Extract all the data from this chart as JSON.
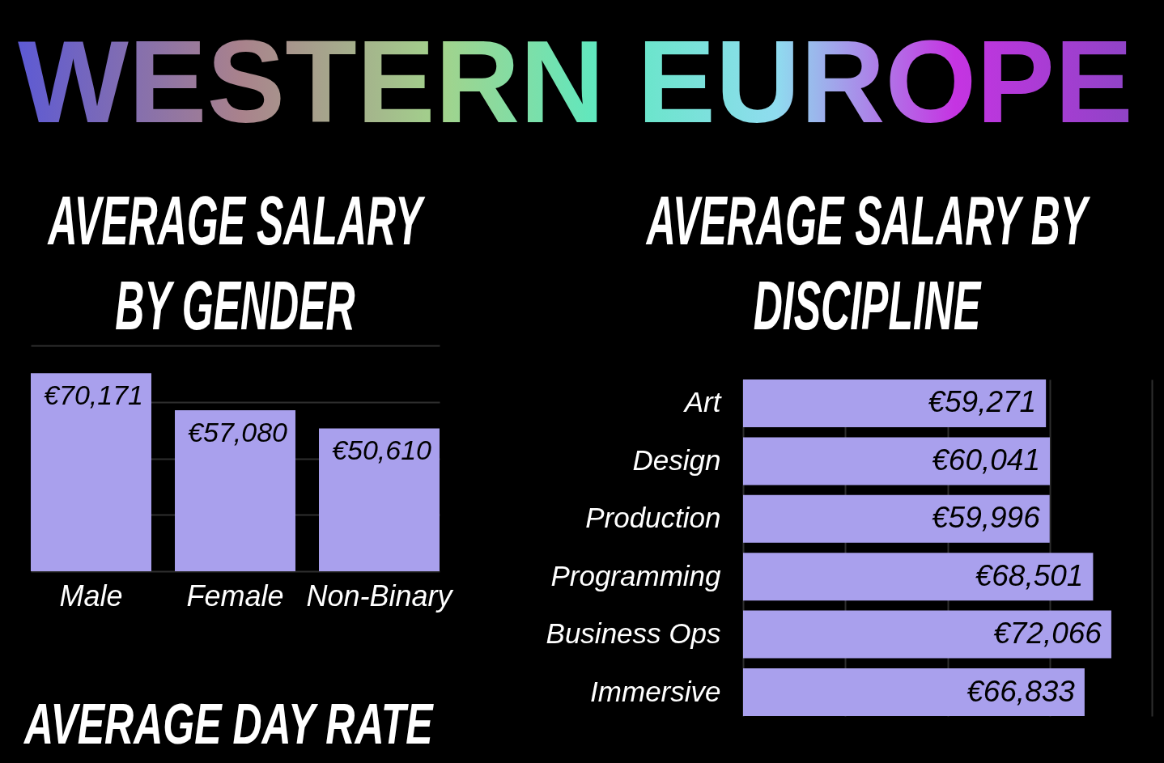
{
  "chart_data": [
    {
      "type": "other",
      "title": "WESTERN EUROPE"
    },
    {
      "type": "bar",
      "title": "AVERAGE SALARY BY GENDER",
      "categories": [
        "Male",
        "Female",
        "Non-Binary"
      ],
      "values": [
        70171,
        57080,
        50610
      ],
      "value_labels": [
        "€70,171",
        "€57,080",
        "€50,610"
      ],
      "color": "#a9a0ed",
      "ylim": [
        0,
        80000
      ],
      "yticks": [
        {
          "value": 0,
          "label": null
        },
        {
          "value": 20000,
          "label": null
        },
        {
          "value": 40000,
          "label": null
        },
        {
          "value": 60000,
          "label": null
        },
        {
          "value": 80000,
          "label": null
        }
      ],
      "grid": "y",
      "tick_labels": "x"
    },
    {
      "type": "bar",
      "orientation": "horizontal",
      "title": "AVERAGE SALARY BY DISCIPLINE",
      "categories": [
        "Art",
        "Design",
        "Production",
        "Programming",
        "Business Ops",
        "Immersive"
      ],
      "values": [
        59271,
        60041,
        59996,
        68501,
        72066,
        66833
      ],
      "value_labels": [
        "€59,271",
        "€60,041",
        "€59,996",
        "€68,501",
        "€72,066",
        "€66,833"
      ],
      "color": "#a9a0ed",
      "xlim": [
        0,
        80000
      ],
      "xticks": [
        {
          "value": 0,
          "label": null
        },
        {
          "value": 20000,
          "label": null
        },
        {
          "value": 40000,
          "label": null
        },
        {
          "value": 60000,
          "label": null
        },
        {
          "value": 80000,
          "label": null
        }
      ],
      "grid": "x",
      "tick_labels": "y"
    },
    {
      "type": "other",
      "title": "AVERAGE DAY RATE"
    }
  ]
}
